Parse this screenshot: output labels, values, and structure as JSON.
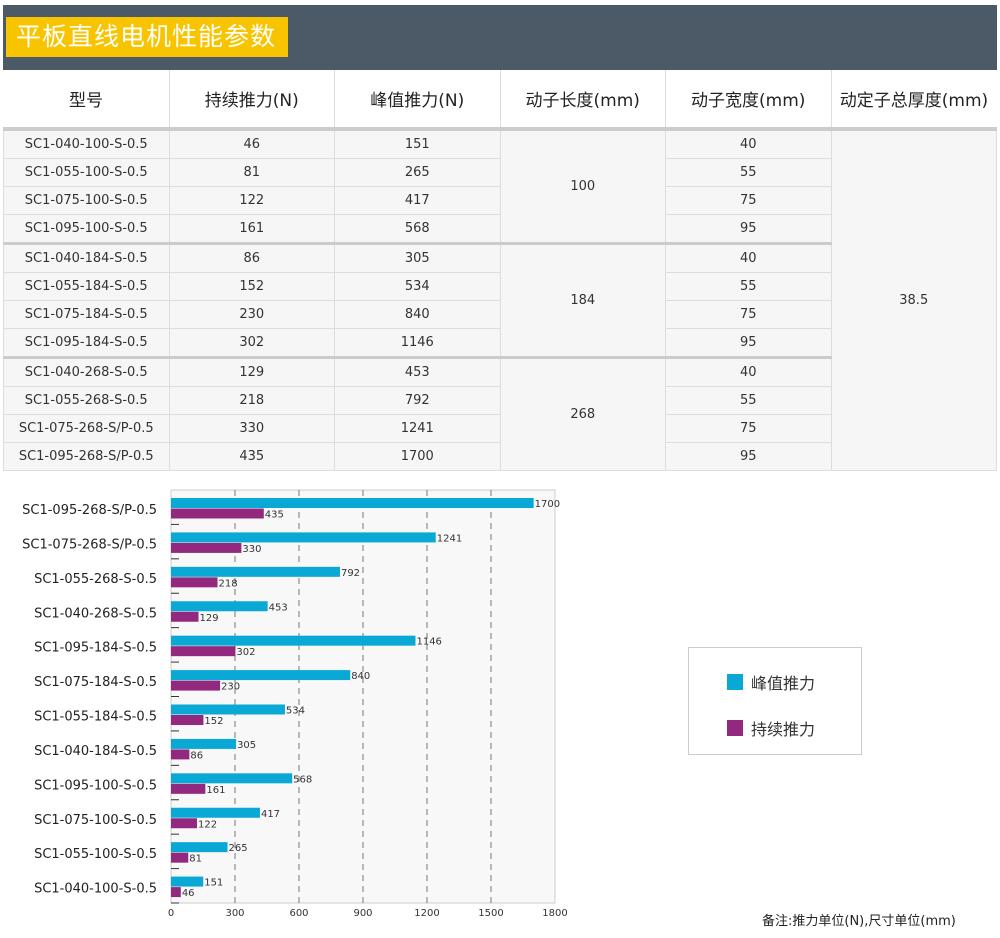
{
  "title": "平板直线电机性能参数",
  "table": {
    "headers": [
      "型号",
      "持续推力(N)",
      "峰值推力(N)",
      "动子长度(mm)",
      "动子宽度(mm)",
      "动定子总厚度(mm)"
    ],
    "rows": [
      [
        "SC1-040-100-S-0.5",
        "46",
        "151",
        "40"
      ],
      [
        "SC1-055-100-S-0.5",
        "81",
        "265",
        "55"
      ],
      [
        "SC1-075-100-S-0.5",
        "122",
        "417",
        "75"
      ],
      [
        "SC1-095-100-S-0.5",
        "161",
        "568",
        "95"
      ],
      [
        "SC1-040-184-S-0.5",
        "86",
        "305",
        "40"
      ],
      [
        "SC1-055-184-S-0.5",
        "152",
        "534",
        "55"
      ],
      [
        "SC1-075-184-S-0.5",
        "230",
        "840",
        "75"
      ],
      [
        "SC1-095-184-S-0.5",
        "302",
        "1146",
        "95"
      ],
      [
        "SC1-040-268-S-0.5",
        "129",
        "453",
        "40"
      ],
      [
        "SC1-055-268-S-0.5",
        "218",
        "792",
        "55"
      ],
      [
        "SC1-075-268-S/P-0.5",
        "330",
        "1241",
        "75"
      ],
      [
        "SC1-095-268-S/P-0.5",
        "435",
        "1700",
        "95"
      ]
    ],
    "lengths": [
      "100",
      "184",
      "268"
    ],
    "thickness": "38.5"
  },
  "chart_data": {
    "type": "bar",
    "orientation": "horizontal",
    "categories": [
      "SC1-095-268-S/P-0.5",
      "SC1-075-268-S/P-0.5",
      "SC1-055-268-S-0.5",
      "SC1-040-268-S-0.5",
      "SC1-095-184-S-0.5",
      "SC1-075-184-S-0.5",
      "SC1-055-184-S-0.5",
      "SC1-040-184-S-0.5",
      "SC1-095-100-S-0.5",
      "SC1-075-100-S-0.5",
      "SC1-055-100-S-0.5",
      "SC1-040-100-S-0.5"
    ],
    "series": [
      {
        "name": "峰值推力",
        "color": "#0aa8d4",
        "values": [
          1700,
          1241,
          792,
          453,
          1146,
          840,
          534,
          305,
          568,
          417,
          265,
          151
        ]
      },
      {
        "name": "持续推力",
        "color": "#93297e",
        "values": [
          435,
          330,
          218,
          129,
          302,
          230,
          152,
          86,
          161,
          122,
          81,
          46
        ]
      }
    ],
    "xlim": [
      0,
      1800
    ],
    "xticks": [
      "0",
      "300",
      "600",
      "900",
      "1200",
      "1500",
      "1800"
    ],
    "grid": "vertical dashed",
    "legend": "right"
  },
  "note": "备注:推力单位(N),尺寸单位(mm)"
}
